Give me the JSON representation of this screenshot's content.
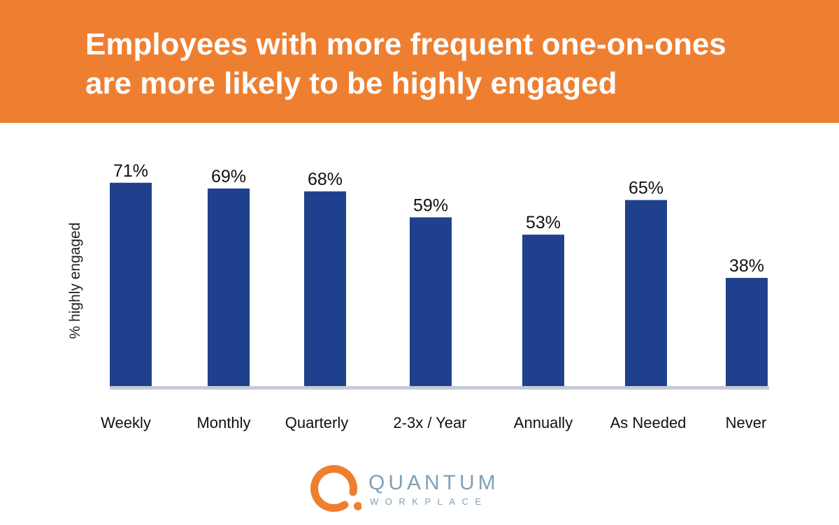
{
  "chart_data": {
    "type": "bar",
    "title": "Employees with more frequent one-on-ones are more likely to be highly engaged",
    "title_lines": [
      "Employees with more frequent one-on-ones",
      "are more likely to be highly engaged"
    ],
    "xlabel": "",
    "ylabel": "% highly engaged",
    "categories": [
      "Weekly",
      "Monthly",
      "Quarterly",
      "2-3x / Year",
      "Annually",
      "As Needed",
      "Never"
    ],
    "values": [
      71,
      69,
      68,
      59,
      53,
      65,
      38
    ],
    "data_labels": [
      "71%",
      "69%",
      "68%",
      "59%",
      "53%",
      "65%",
      "38%"
    ],
    "ylim": [
      0,
      80
    ],
    "grid": false,
    "legend": "none",
    "colors": {
      "bar": "#1F418D",
      "header": "#EE7F31",
      "baseline": "#C5CAD6"
    }
  },
  "logo": {
    "line1": "QUANTUM",
    "line2": "WORKPLACE",
    "colors": {
      "ring": "#EE7F31",
      "text": "#7FA0B8"
    }
  }
}
